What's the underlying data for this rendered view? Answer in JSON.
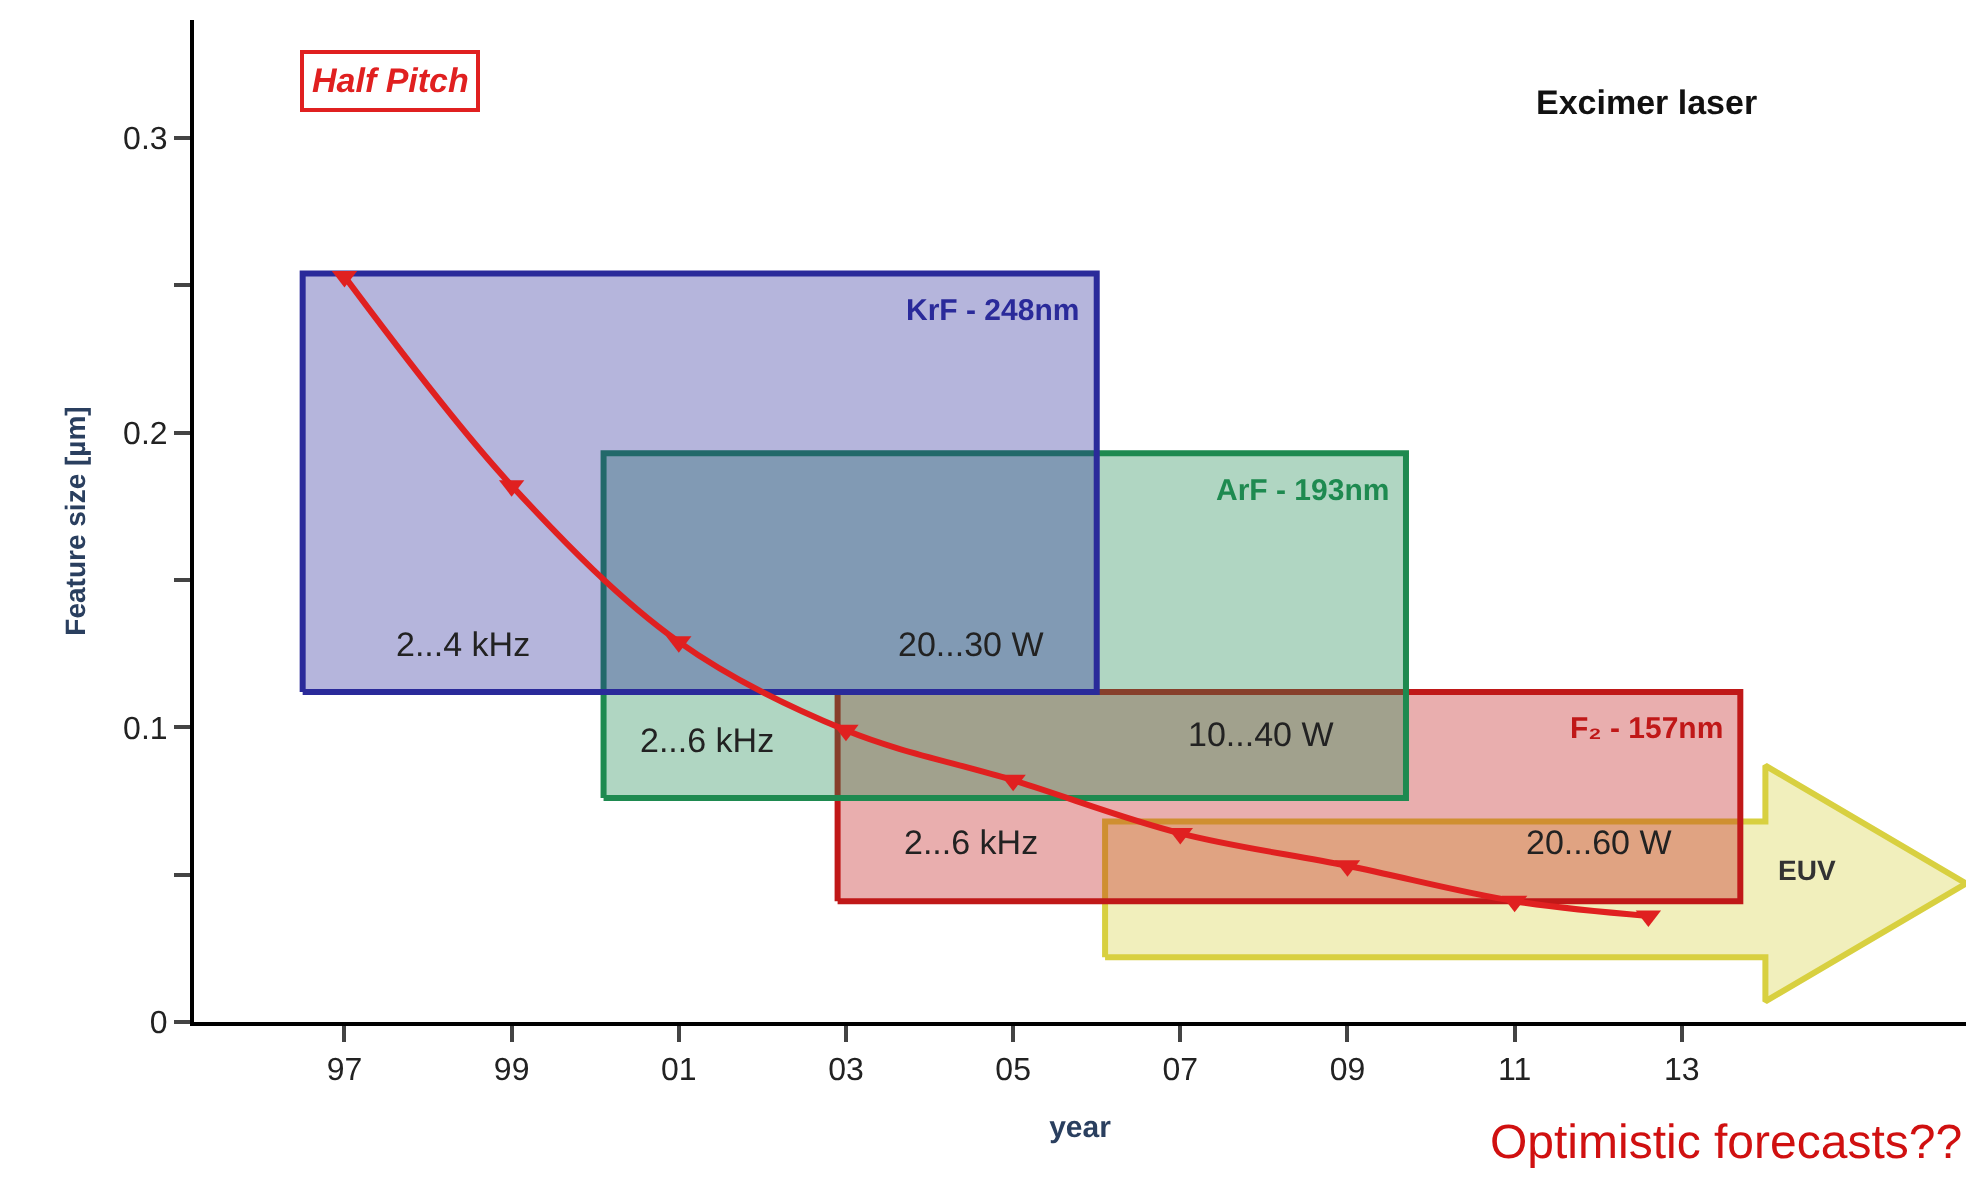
{
  "chart_data": {
    "type": "line",
    "xlabel": "year",
    "ylabel": "Feature size [µm]",
    "xlim": [
      1995.2,
      2016.4
    ],
    "xticks": [
      {
        "value": 1997,
        "label": "97"
      },
      {
        "value": 1999,
        "label": "99"
      },
      {
        "value": 2001,
        "label": "01"
      },
      {
        "value": 2003,
        "label": "03"
      },
      {
        "value": 2005,
        "label": "05"
      },
      {
        "value": 2007,
        "label": "07"
      },
      {
        "value": 2009,
        "label": "09"
      },
      {
        "value": 2011,
        "label": "11"
      },
      {
        "value": 2013,
        "label": "13"
      }
    ],
    "ylim": [
      0,
      0.34
    ],
    "yticks": [
      0,
      {
        "value": 0.05,
        "label": null
      },
      0.1,
      {
        "value": 0.15,
        "label": null
      },
      0.2,
      {
        "value": 0.25,
        "label": null
      },
      0.3
    ],
    "series": [
      {
        "name": "Half Pitch",
        "color": "#e02020",
        "marker": "triangle",
        "x": [
          1997,
          1999,
          2001,
          2003,
          2005,
          2007,
          2009,
          2011,
          2012.6
        ],
        "values": [
          0.253,
          0.182,
          0.129,
          0.099,
          0.082,
          0.064,
          0.053,
          0.041,
          0.036
        ]
      },
      {
        "name": "KrF - 248nm",
        "type": "area",
        "color": "#2a2a9a",
        "x": [
          1996.5,
          2006.0,
          2006.0,
          1996.5,
          1996.5
        ],
        "values": [
          0.112,
          0.112,
          0.254,
          0.254,
          0.112
        ]
      },
      {
        "name": "ArF - 193nm",
        "type": "area",
        "color": "#1e8a50",
        "x": [
          2000.1,
          2009.7,
          2009.7,
          2000.1,
          2000.1
        ],
        "values": [
          0.076,
          0.076,
          0.193,
          0.193,
          0.076
        ]
      },
      {
        "name": "F₂ - 157nm",
        "type": "area",
        "color": "#c01818",
        "x": [
          2002.9,
          2013.7,
          2013.7,
          2002.9,
          2002.9
        ],
        "values": [
          0.041,
          0.041,
          0.112,
          0.112,
          0.041
        ]
      },
      {
        "name": "EUV",
        "type": "area",
        "color": "#d8d040",
        "x": [
          2006.1,
          2014.0,
          2014.0,
          2016.4,
          2014.0,
          2014.0,
          2006.1,
          2006.1
        ],
        "values": [
          0.022,
          0.022,
          0.007,
          0.047,
          0.087,
          0.068,
          0.068,
          0.022
        ]
      }
    ],
    "annotations": [
      "2...4 kHz",
      "20...30 W",
      "2...6 kHz",
      "10...40 W",
      "2...6 kHz",
      "20...60 W",
      "Excimer laser",
      "Optimistic forecasts??"
    ]
  }
}
